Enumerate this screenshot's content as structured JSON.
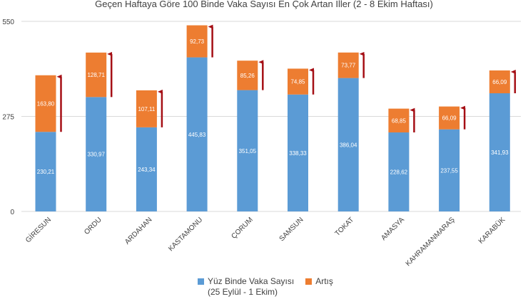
{
  "chart_data": {
    "type": "bar",
    "stacked": true,
    "title": "Geçen Haftaya Göre 100 Binde Vaka Sayısı En Çok Artan İller (2 - 8 Ekim Haftası)",
    "categories": [
      "GİRESUN",
      "ORDU",
      "ARDAHAN",
      "KASTAMONU",
      "ÇORUM",
      "SAMSUN",
      "TOKAT",
      "AMASYA",
      "KAHRAMANMARAŞ",
      "KARABÜK"
    ],
    "series": [
      {
        "name": "Yüz Binde Vaka Sayısı",
        "name_line2": "(25 Eylül - 1 Ekim)",
        "color": "#5b9bd5",
        "values": [
          230.21,
          330.97,
          243.34,
          445.83,
          351.05,
          338.33,
          386.04,
          228.62,
          237.55,
          341.93
        ],
        "labels": [
          "230,21",
          "330,97",
          "243,34",
          "445,83",
          "351,05",
          "338,33",
          "386,04",
          "228,62",
          "237,55",
          "341,93"
        ]
      },
      {
        "name": "Artış",
        "color": "#ed7d31",
        "values": [
          163.8,
          128.71,
          107.11,
          92.73,
          85.26,
          74.85,
          73.77,
          68.85,
          66.09,
          66.09
        ],
        "labels": [
          "163,80",
          "128,71",
          "107,11",
          "92,73",
          "85,26",
          "74,85",
          "73,77",
          "68,85",
          "66,09",
          "66,09"
        ]
      }
    ],
    "ylim": [
      0,
      550
    ],
    "yticks": [
      "0",
      "275",
      "550"
    ],
    "ytick_values": [
      0,
      275,
      550
    ],
    "grid": true,
    "arrow_color": "#a50f15",
    "legend_position": "bottom"
  }
}
